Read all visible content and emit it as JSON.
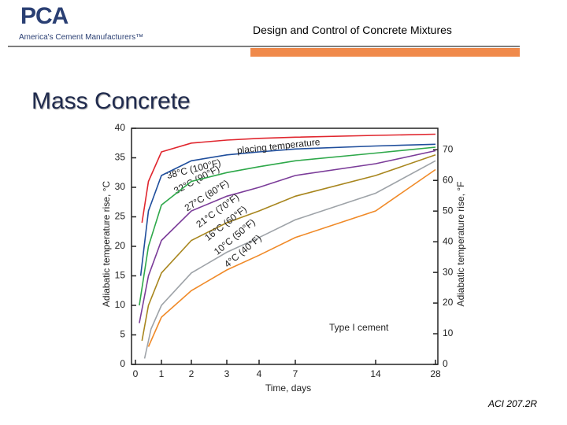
{
  "header": {
    "logo": "PCA",
    "tagline": "America's Cement Manufacturers™",
    "title": "Design and Control of Concrete Mixtures"
  },
  "slide_title": "Mass Concrete",
  "footer": "ACI 207.2R",
  "chart_data": {
    "type": "line",
    "xlabel": "Time, days",
    "ylabel": "Adiabatic temperature rise, °C",
    "y2label": "Adiabatic temperature rise, °F",
    "annotations": [
      "placing temperature",
      "Type I cement"
    ],
    "xticks": [
      0,
      1,
      2,
      3,
      4,
      7,
      14,
      28
    ],
    "xlim": [
      0,
      28
    ],
    "ylim": [
      0,
      40
    ],
    "yticks": [
      0,
      5,
      10,
      15,
      20,
      25,
      30,
      35,
      40
    ],
    "y2lim": [
      0,
      77
    ],
    "y2ticks": [
      0,
      10,
      20,
      30,
      40,
      50,
      60,
      70
    ],
    "series": [
      {
        "name": "38°C (100°F)",
        "color": "#e0262e",
        "x": [
          0.25,
          0.5,
          1,
          2,
          3,
          4,
          7,
          14,
          28
        ],
        "values": [
          24,
          31,
          36,
          37.5,
          38,
          38.3,
          38.5,
          38.8,
          39
        ]
      },
      {
        "name": "32°C (90°F)",
        "color": "#1f4e9c",
        "x": [
          0.2,
          0.5,
          1,
          2,
          3,
          4,
          7,
          14,
          28
        ],
        "values": [
          15,
          26,
          32,
          34.5,
          35.5,
          36,
          36.5,
          37,
          37.3
        ]
      },
      {
        "name": "27°C (80°F)",
        "color": "#2ea84a",
        "x": [
          0.15,
          0.5,
          1,
          2,
          3,
          4,
          7,
          14,
          28
        ],
        "values": [
          10,
          20,
          27,
          31,
          32.5,
          33.5,
          34.5,
          35.8,
          36.8
        ]
      },
      {
        "name": "21°C (70°F)",
        "color": "#7b3c99",
        "x": [
          0.15,
          0.5,
          1,
          2,
          3,
          4,
          7,
          14,
          28
        ],
        "values": [
          7,
          15,
          21,
          26,
          28.5,
          30,
          32,
          34,
          36.2
        ]
      },
      {
        "name": "16°C (60°F)",
        "color": "#a8861e",
        "x": [
          0.25,
          0.5,
          1,
          2,
          3,
          4,
          7,
          14,
          28
        ],
        "values": [
          4,
          10,
          15.5,
          21,
          24,
          26,
          28.5,
          32,
          35.5
        ]
      },
      {
        "name": "10°C (50°F)",
        "color": "#9ea3a8",
        "x": [
          0.35,
          0.6,
          1,
          2,
          3,
          4,
          7,
          14,
          28
        ],
        "values": [
          1,
          6,
          10,
          15.5,
          19,
          21.5,
          24.5,
          29,
          34.5
        ]
      },
      {
        "name": "4°C (40°F)",
        "color": "#f08a28",
        "x": [
          0.5,
          1,
          2,
          3,
          4,
          7,
          14,
          28
        ],
        "values": [
          3,
          8,
          12.5,
          16,
          18.5,
          21.5,
          26,
          33
        ]
      }
    ]
  }
}
